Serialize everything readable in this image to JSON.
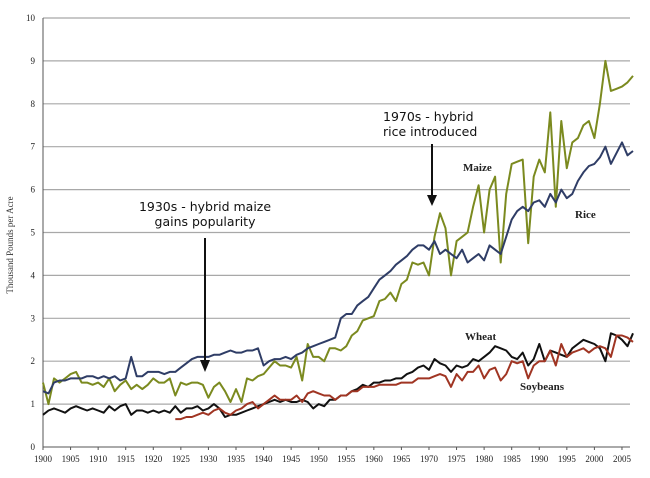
{
  "chart_data": {
    "type": "line",
    "title": "",
    "xlabel": "",
    "ylabel": "Thousand Pounds per Acre",
    "xlim": [
      1900,
      2008
    ],
    "ylim": [
      0,
      10
    ],
    "grid": true,
    "yticks": [
      0,
      1,
      2,
      3,
      4,
      5,
      6,
      7,
      8,
      9,
      10
    ],
    "xticks": [
      1900,
      1905,
      1910,
      1915,
      1920,
      1925,
      1930,
      1935,
      1940,
      1945,
      1950,
      1955,
      1960,
      1965,
      1970,
      1975,
      1980,
      1985,
      1990,
      1995,
      2000,
      2005
    ],
    "x": [
      1900,
      1901,
      1902,
      1903,
      1904,
      1905,
      1906,
      1907,
      1908,
      1909,
      1910,
      1911,
      1912,
      1913,
      1914,
      1915,
      1916,
      1917,
      1918,
      1919,
      1920,
      1921,
      1922,
      1923,
      1924,
      1925,
      1926,
      1927,
      1928,
      1929,
      1930,
      1931,
      1932,
      1933,
      1934,
      1935,
      1936,
      1937,
      1938,
      1939,
      1940,
      1941,
      1942,
      1943,
      1944,
      1945,
      1946,
      1947,
      1948,
      1949,
      1950,
      1951,
      1952,
      1953,
      1954,
      1955,
      1956,
      1957,
      1958,
      1959,
      1960,
      1961,
      1962,
      1963,
      1964,
      1965,
      1966,
      1967,
      1968,
      1969,
      1970,
      1971,
      1972,
      1973,
      1974,
      1975,
      1976,
      1977,
      1978,
      1979,
      1980,
      1981,
      1982,
      1983,
      1984,
      1985,
      1986,
      1987,
      1988,
      1989,
      1990,
      1991,
      1992,
      1993,
      1994,
      1995,
      1996,
      1997,
      1998,
      1999,
      2000,
      2001,
      2002,
      2003,
      2004,
      2005,
      2006,
      2007
    ],
    "series": [
      {
        "name": "Maize",
        "color": "#7b8a1f",
        "values": [
          1.5,
          1.0,
          1.6,
          1.5,
          1.6,
          1.7,
          1.75,
          1.5,
          1.5,
          1.45,
          1.5,
          1.4,
          1.6,
          1.3,
          1.45,
          1.55,
          1.35,
          1.45,
          1.35,
          1.45,
          1.6,
          1.5,
          1.5,
          1.6,
          1.2,
          1.5,
          1.45,
          1.5,
          1.5,
          1.45,
          1.15,
          1.4,
          1.5,
          1.3,
          1.05,
          1.35,
          1.05,
          1.6,
          1.55,
          1.65,
          1.7,
          1.85,
          2.0,
          1.9,
          1.9,
          1.85,
          2.1,
          1.55,
          2.4,
          2.1,
          2.1,
          2.0,
          2.3,
          2.3,
          2.25,
          2.35,
          2.6,
          2.7,
          2.95,
          3.0,
          3.05,
          3.4,
          3.45,
          3.6,
          3.4,
          3.8,
          3.9,
          4.3,
          4.25,
          4.3,
          4.0,
          4.9,
          5.45,
          5.1,
          4.0,
          4.8,
          4.9,
          5.0,
          5.6,
          6.1,
          5.0,
          6.0,
          6.3,
          4.3,
          5.9,
          6.6,
          6.65,
          6.7,
          4.75,
          6.3,
          6.7,
          6.4,
          7.8,
          5.6,
          7.6,
          6.5,
          7.1,
          7.2,
          7.5,
          7.6,
          7.2,
          8.0,
          9.0,
          8.3,
          8.35,
          8.4,
          8.5,
          8.65
        ]
      },
      {
        "name": "Rice",
        "color": "#2f3d66",
        "values": [
          1.3,
          1.25,
          1.5,
          1.55,
          1.55,
          1.6,
          1.6,
          1.6,
          1.65,
          1.65,
          1.6,
          1.65,
          1.6,
          1.65,
          1.55,
          1.6,
          2.1,
          1.65,
          1.65,
          1.75,
          1.75,
          1.75,
          1.7,
          1.75,
          1.75,
          1.85,
          1.95,
          2.05,
          2.1,
          2.1,
          2.1,
          2.15,
          2.15,
          2.2,
          2.25,
          2.2,
          2.2,
          2.25,
          2.25,
          2.3,
          1.9,
          2.0,
          2.05,
          2.05,
          2.1,
          2.05,
          2.15,
          2.2,
          2.3,
          2.35,
          2.4,
          2.45,
          2.5,
          2.55,
          3.0,
          3.1,
          3.1,
          3.3,
          3.4,
          3.5,
          3.7,
          3.9,
          4.0,
          4.1,
          4.25,
          4.35,
          4.45,
          4.6,
          4.7,
          4.7,
          4.6,
          4.8,
          4.5,
          4.6,
          4.5,
          4.4,
          4.6,
          4.3,
          4.4,
          4.5,
          4.35,
          4.7,
          4.6,
          4.5,
          4.9,
          5.3,
          5.5,
          5.6,
          5.5,
          5.7,
          5.75,
          5.6,
          5.9,
          5.7,
          6.0,
          5.8,
          5.9,
          6.2,
          6.4,
          6.55,
          6.6,
          6.75,
          7.0,
          6.6,
          6.85,
          7.1,
          6.8,
          6.9
        ]
      },
      {
        "name": "Wheat",
        "color": "#111111",
        "values": [
          0.75,
          0.85,
          0.9,
          0.85,
          0.8,
          0.9,
          0.95,
          0.9,
          0.85,
          0.9,
          0.85,
          0.8,
          0.95,
          0.85,
          0.95,
          1.0,
          0.75,
          0.85,
          0.85,
          0.8,
          0.85,
          0.8,
          0.85,
          0.8,
          0.95,
          0.8,
          0.9,
          0.9,
          0.95,
          0.85,
          0.9,
          1.0,
          0.9,
          0.7,
          0.75,
          0.75,
          0.8,
          0.85,
          0.9,
          0.95,
          1.0,
          1.05,
          1.1,
          1.05,
          1.1,
          1.05,
          1.05,
          1.1,
          1.05,
          0.9,
          1.0,
          0.95,
          1.1,
          1.1,
          1.2,
          1.2,
          1.3,
          1.35,
          1.45,
          1.4,
          1.5,
          1.5,
          1.55,
          1.55,
          1.6,
          1.6,
          1.7,
          1.75,
          1.85,
          1.9,
          1.8,
          2.05,
          1.95,
          1.9,
          1.75,
          1.9,
          1.85,
          1.9,
          2.05,
          2.0,
          2.1,
          2.2,
          2.35,
          2.3,
          2.25,
          2.1,
          2.05,
          2.2,
          1.9,
          2.05,
          2.4,
          2.0,
          2.25,
          2.2,
          2.15,
          2.1,
          2.3,
          2.4,
          2.5,
          2.45,
          2.4,
          2.3,
          2.0,
          2.65,
          2.6,
          2.5,
          2.35,
          2.65
        ]
      },
      {
        "name": "Soybeans",
        "color": "#a03523",
        "values": [
          null,
          null,
          null,
          null,
          null,
          null,
          null,
          null,
          null,
          null,
          null,
          null,
          null,
          null,
          null,
          null,
          null,
          null,
          null,
          null,
          null,
          null,
          null,
          null,
          0.65,
          0.65,
          0.7,
          0.7,
          0.75,
          0.8,
          0.75,
          0.85,
          0.9,
          0.8,
          0.75,
          0.85,
          0.9,
          1.0,
          1.05,
          0.9,
          1.0,
          1.1,
          1.2,
          1.1,
          1.1,
          1.1,
          1.2,
          1.05,
          1.25,
          1.3,
          1.25,
          1.2,
          1.2,
          1.1,
          1.2,
          1.2,
          1.3,
          1.3,
          1.4,
          1.4,
          1.4,
          1.45,
          1.45,
          1.45,
          1.45,
          1.5,
          1.5,
          1.5,
          1.6,
          1.6,
          1.6,
          1.65,
          1.7,
          1.65,
          1.4,
          1.7,
          1.55,
          1.75,
          1.75,
          1.9,
          1.6,
          1.8,
          1.85,
          1.55,
          1.7,
          2.0,
          1.95,
          2.0,
          1.6,
          1.9,
          2.0,
          2.0,
          2.25,
          1.9,
          2.4,
          2.1,
          2.2,
          2.25,
          2.3,
          2.2,
          2.3,
          2.35,
          2.3,
          2.1,
          2.6,
          2.6,
          2.55,
          2.45
        ]
      }
    ],
    "annotations": [
      {
        "lines": [
          "1930s - hybrid maize",
          "gains popularity"
        ],
        "year": 1930
      },
      {
        "lines": [
          "1970s - hybrid",
          "rice introduced"
        ],
        "year": 1972
      }
    ]
  }
}
